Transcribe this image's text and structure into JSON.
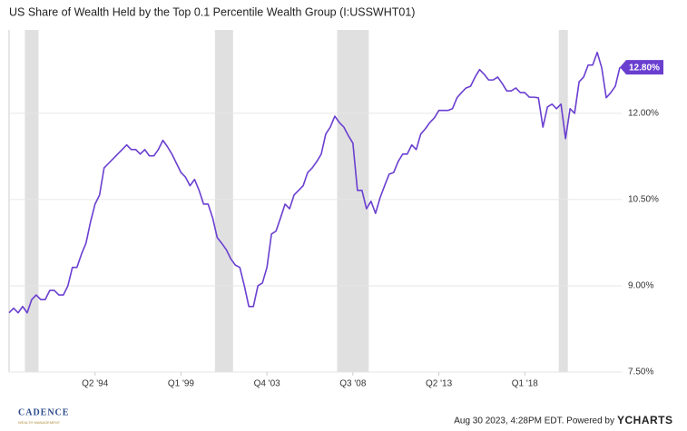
{
  "chart_data": {
    "type": "line",
    "title": "US Share of Wealth Held by the Top 0.1 Percentile Wealth Group (I:USSWHT01)",
    "categories": [
      "Q3 '89",
      "Q4 '89",
      "Q1 '90",
      "Q2 '90",
      "Q3 '90",
      "Q4 '90",
      "Q1 '91",
      "Q2 '91",
      "Q3 '91",
      "Q4 '91",
      "Q1 '92",
      "Q2 '92",
      "Q3 '92",
      "Q4 '92",
      "Q1 '93",
      "Q2 '93",
      "Q3 '93",
      "Q4 '93",
      "Q1 '94",
      "Q2 '94",
      "Q3 '94",
      "Q4 '94",
      "Q1 '95",
      "Q2 '95",
      "Q3 '95",
      "Q4 '95",
      "Q1 '96",
      "Q2 '96",
      "Q3 '96",
      "Q4 '96",
      "Q1 '97",
      "Q2 '97",
      "Q3 '97",
      "Q4 '97",
      "Q1 '98",
      "Q2 '98",
      "Q3 '98",
      "Q4 '98",
      "Q1 '99",
      "Q2 '99",
      "Q3 '99",
      "Q4 '99",
      "Q1 '00",
      "Q2 '00",
      "Q3 '00",
      "Q4 '00",
      "Q1 '01",
      "Q2 '01",
      "Q3 '01",
      "Q4 '01",
      "Q1 '02",
      "Q2 '02",
      "Q3 '02",
      "Q4 '02",
      "Q1 '03",
      "Q2 '03",
      "Q3 '03",
      "Q4 '03",
      "Q1 '04",
      "Q2 '04",
      "Q3 '04",
      "Q4 '04",
      "Q1 '05",
      "Q2 '05",
      "Q3 '05",
      "Q4 '05",
      "Q1 '06",
      "Q2 '06",
      "Q3 '06",
      "Q4 '06",
      "Q1 '07",
      "Q2 '07",
      "Q3 '07",
      "Q4 '07",
      "Q1 '08",
      "Q2 '08",
      "Q3 '08",
      "Q4 '08",
      "Q1 '09",
      "Q2 '09",
      "Q3 '09",
      "Q4 '09",
      "Q1 '10",
      "Q2 '10",
      "Q3 '10",
      "Q4 '10",
      "Q1 '11",
      "Q2 '11",
      "Q3 '11",
      "Q4 '11",
      "Q1 '12",
      "Q2 '12",
      "Q3 '12",
      "Q4 '12",
      "Q1 '13",
      "Q2 '13",
      "Q3 '13",
      "Q4 '13",
      "Q1 '14",
      "Q2 '14",
      "Q3 '14",
      "Q4 '14",
      "Q1 '15",
      "Q2 '15",
      "Q3 '15",
      "Q4 '15",
      "Q1 '16",
      "Q2 '16",
      "Q3 '16",
      "Q4 '16",
      "Q1 '17",
      "Q2 '17",
      "Q3 '17",
      "Q4 '17",
      "Q1 '18",
      "Q2 '18",
      "Q3 '18",
      "Q4 '18",
      "Q1 '19",
      "Q2 '19",
      "Q3 '19",
      "Q4 '19",
      "Q1 '20",
      "Q2 '20",
      "Q3 '20",
      "Q4 '20",
      "Q1 '21",
      "Q2 '21",
      "Q3 '21",
      "Q4 '21",
      "Q1 '22",
      "Q2 '22",
      "Q3 '22",
      "Q4 '22",
      "Q1 '23",
      "Q2 '23"
    ],
    "series": [
      {
        "name": "US Share of Wealth Held by the Top 0.1 Percentile Wealth Group",
        "color": "#6a3fd0",
        "values": [
          8.53,
          8.61,
          8.53,
          8.64,
          8.53,
          8.76,
          8.84,
          8.76,
          8.76,
          8.92,
          8.92,
          8.84,
          8.84,
          9.0,
          9.32,
          9.32,
          9.55,
          9.74,
          10.11,
          10.42,
          10.58,
          11.05,
          11.13,
          11.21,
          11.29,
          11.37,
          11.45,
          11.37,
          11.37,
          11.29,
          11.37,
          11.26,
          11.26,
          11.37,
          11.53,
          11.42,
          11.29,
          11.13,
          10.97,
          10.89,
          10.74,
          10.85,
          10.66,
          10.42,
          10.42,
          10.18,
          9.84,
          9.74,
          9.63,
          9.47,
          9.36,
          9.32,
          9.0,
          8.64,
          8.64,
          9.0,
          9.05,
          9.32,
          9.9,
          9.95,
          10.18,
          10.42,
          10.34,
          10.58,
          10.66,
          10.74,
          10.97,
          11.05,
          11.16,
          11.29,
          11.64,
          11.76,
          11.95,
          11.84,
          11.76,
          11.61,
          11.48,
          10.66,
          10.66,
          10.34,
          10.47,
          10.26,
          10.53,
          10.74,
          10.94,
          10.97,
          11.16,
          11.29,
          11.29,
          11.45,
          11.37,
          11.64,
          11.73,
          11.84,
          11.92,
          12.05,
          12.05,
          12.05,
          12.08,
          12.27,
          12.36,
          12.44,
          12.47,
          12.63,
          12.76,
          12.68,
          12.58,
          12.58,
          12.63,
          12.52,
          12.39,
          12.39,
          12.44,
          12.36,
          12.36,
          12.28,
          12.28,
          12.27,
          11.76,
          12.11,
          12.16,
          12.08,
          12.16,
          11.56,
          12.08,
          12.0,
          12.55,
          12.63,
          12.84,
          12.84,
          13.06,
          12.79,
          12.27,
          12.36,
          12.47,
          12.8
        ]
      }
    ],
    "last_label": "12.80%",
    "shaded_ranges": [
      {
        "start": "Q3 '90",
        "end": "Q1 '91"
      },
      {
        "start": "Q1 '01",
        "end": "Q4 '01"
      },
      {
        "start": "Q4 '07",
        "end": "Q2 '09"
      },
      {
        "start": "Q1 '20",
        "end": "Q2 '20"
      }
    ],
    "shade_color": "#e0e0e0",
    "ylim": [
      7.5,
      13.45
    ],
    "yticks": [
      {
        "value": 7.5,
        "label": "7.50%"
      },
      {
        "value": 9,
        "label": "9.00%"
      },
      {
        "value": 10.5,
        "label": "10.50%"
      },
      {
        "value": 12,
        "label": "12.00%"
      }
    ],
    "xticks": [
      "Q2 '94",
      "Q1 '99",
      "Q4 '03",
      "Q3 '08",
      "Q2 '13",
      "Q1 '18"
    ],
    "grid": true
  },
  "footer": {
    "timestamp": "Aug 30 2023, 4:28PM EDT. Powered by",
    "brand": "YCHARTS",
    "logo": "CADENCE",
    "logo_sub": "WEALTH MANAGEMENT"
  }
}
